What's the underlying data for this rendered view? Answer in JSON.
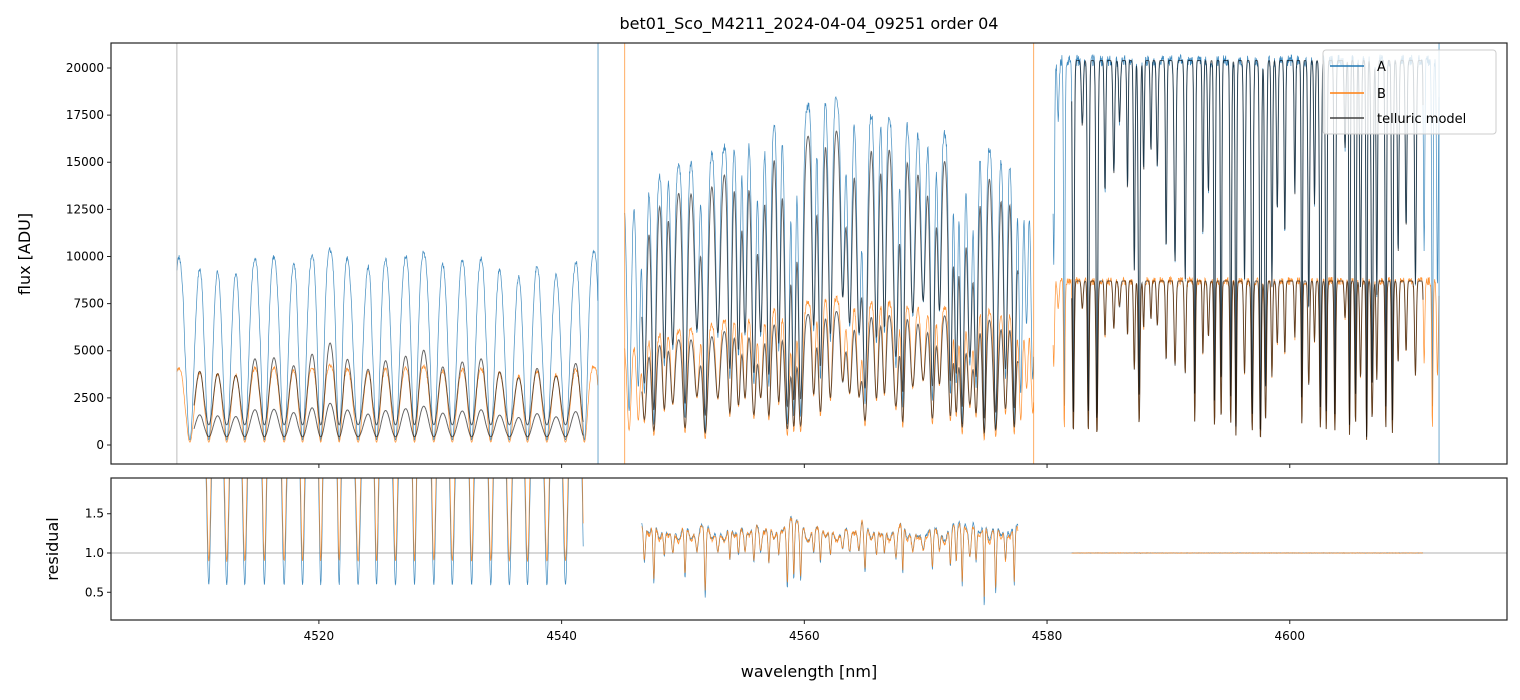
{
  "chart_data": [
    {
      "type": "line",
      "title": "bet01_Sco_M4211_2024-04-04_09251  order 04",
      "xlabel": "",
      "ylabel": "flux [ADU]",
      "xlim": [
        4502.87,
        4617.9
      ],
      "ylim": [
        -1008,
        21326
      ],
      "xticks": [
        4520,
        4540,
        4560,
        4580,
        4600
      ],
      "yticks": [
        0,
        2500,
        5000,
        7500,
        10000,
        12500,
        15000,
        17500,
        20000
      ],
      "ytick_labels": [
        "0",
        "2500",
        "5000",
        "7500",
        "10000",
        "12500",
        "15000",
        "17500",
        "20000"
      ],
      "legend": {
        "placement": "top-right",
        "entries": [
          "A",
          "B",
          "telluric model"
        ]
      },
      "colors": {
        "A": "#1f77b4",
        "B": "#ff7f0e",
        "telluric model": "#404040"
      },
      "segments": [
        {
          "range": [
            4508.3,
            4543.0
          ],
          "model_range": [
            4509.7,
            4541.8
          ],
          "line_spacing": 1.55,
          "line_sigma": 0.42,
          "A_peak": 10500,
          "B_peak": 4300,
          "model_A_peak": 6600,
          "model_B_peak": 2700
        },
        {
          "range": [
            4545.2,
            4578.9
          ],
          "model_range": [
            4546.6,
            4577.6
          ],
          "line_spacing": 0.8,
          "line_sigma": 0.2,
          "A_peak": [
            13500,
            18500,
            15000
          ],
          "B_peak": [
            5500,
            7800,
            7000
          ],
          "model_A_peak": [
            12500,
            17000,
            14000
          ],
          "model_B_peak": [
            5200,
            7200,
            6800
          ]
        },
        {
          "range": [
            4580.5,
            4612.3
          ],
          "model_range": [
            4582.0,
            4611.0
          ],
          "line_spacing": 0.6,
          "line_sigma": 0.09,
          "A_peak": 20400,
          "B_peak": 8700,
          "model_A_peak": 20400,
          "model_B_peak": 8700
        }
      ]
    },
    {
      "type": "line",
      "title": "",
      "xlabel": "wavelength [nm]",
      "ylabel": "residual",
      "xlim": [
        4502.87,
        4617.9
      ],
      "ylim": [
        0.147,
        1.955
      ],
      "xticks": [
        4520,
        4540,
        4560,
        4580,
        4600
      ],
      "xtick_labels": [
        "4520",
        "4540",
        "4560",
        "4580",
        "4600"
      ],
      "yticks": [
        0.5,
        1.0,
        1.5
      ],
      "ytick_labels": [
        "0.5",
        "1.0",
        "1.5"
      ],
      "reference_line": 1.0,
      "series": [
        {
          "name": "A residual",
          "segments": [
            [
              4510.0,
              4541.8,
              "0.3-1.9"
            ],
            [
              4546.6,
              4577.6,
              "0.5-1.6"
            ],
            [
              4582.0,
              4611.0,
              "~1.0"
            ]
          ]
        },
        {
          "name": "B residual",
          "segments": [
            [
              4510.0,
              4541.8,
              "0.5-1.75"
            ],
            [
              4546.6,
              4577.6,
              "0.5-1.6"
            ],
            [
              4582.0,
              4611.0,
              "~1.0"
            ]
          ]
        }
      ]
    }
  ]
}
